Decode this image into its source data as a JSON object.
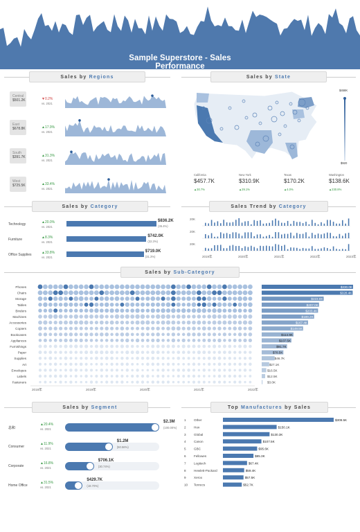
{
  "header": {
    "title": "Sample Superstore - Sales Performance"
  },
  "regions": {
    "title_prefix": "Sales  by",
    "title_word": "Regions",
    "items": [
      {
        "name": "Central",
        "value": "$501.2K",
        "delta": "▼0.2%",
        "vs": "vs. 2021",
        "dir": "down"
      },
      {
        "name": "East",
        "value": "$678.8K",
        "delta": "▲17.9%",
        "vs": "vs. 2021",
        "dir": "up"
      },
      {
        "name": "South",
        "value": "$391.7K",
        "delta": "▲31.3%",
        "vs": "vs. 2021",
        "dir": "up"
      },
      {
        "name": "West",
        "value": "$725.5K",
        "delta": "▲33.4%",
        "vs": "vs. 2021",
        "dir": "up"
      }
    ]
  },
  "state": {
    "title_prefix": "Sales  by",
    "title_word": "State",
    "legend_max": "$458K",
    "legend_min": "$920",
    "items": [
      {
        "name": "California",
        "value": "$457.7K",
        "delta": "▲30.7%"
      },
      {
        "name": "New York",
        "value": "$310.9K",
        "delta": "▲29.1%"
      },
      {
        "name": "Texas",
        "value": "$170.2K",
        "delta": "▲4.0%"
      },
      {
        "name": "Washington",
        "value": "$138.6K",
        "delta": "▲230.8%"
      }
    ]
  },
  "category": {
    "title_prefix": "Sales  by",
    "title_word": "Category",
    "items": [
      {
        "name": "Technology",
        "delta": "▲20.0%",
        "vs": "vs. 2021",
        "value": "$836.2K",
        "share": "(36.4%)",
        "pct": 36.4
      },
      {
        "name": "Furniture",
        "delta": "▲8.3%",
        "vs": "vs. 2021",
        "value": "$742.0K",
        "share": "(32.3%)",
        "pct": 32.3
      },
      {
        "name": "Office Supplies",
        "delta": "▲33.8%",
        "vs": "vs. 2021",
        "value": "$719.0K",
        "share": "(31.3%)",
        "pct": 31.3
      }
    ]
  },
  "trend": {
    "title_prefix": "Sales Trend  by",
    "title_word": "Category",
    "ylabel": "20K",
    "years": [
      "2019年",
      "2020年",
      "2021年",
      "2022年",
      "2023年"
    ]
  },
  "subcat": {
    "title_prefix": "Sales  by",
    "title_word": "Sub-Category",
    "years": [
      "2018年",
      "2019年",
      "2020年",
      "2021年",
      "2022年"
    ],
    "items": [
      {
        "name": "Phones",
        "value": "$330.0K",
        "v": 330.0
      },
      {
        "name": "Chairs",
        "value": "$328.4K",
        "v": 328.4
      },
      {
        "name": "Storage",
        "value": "$223.8K",
        "v": 223.8
      },
      {
        "name": "Tables",
        "value": "$207.0K",
        "v": 207.0
      },
      {
        "name": "Binders",
        "value": "$203.4K",
        "v": 203.4
      },
      {
        "name": "Machines",
        "value": "$189.2K",
        "v": 189.2
      },
      {
        "name": "Accessories",
        "value": "$167.4K",
        "v": 167.4
      },
      {
        "name": "Copiers",
        "value": "$149.5K",
        "v": 149.5
      },
      {
        "name": "Bookcases",
        "value": "$114.9K",
        "v": 114.9
      },
      {
        "name": "Appliances",
        "value": "$107.5K",
        "v": 107.5
      },
      {
        "name": "Furnishings",
        "value": "$91.7K",
        "v": 91.7
      },
      {
        "name": "Paper",
        "value": "$78.5K",
        "v": 78.5
      },
      {
        "name": "Supplies",
        "value": "$46.7K",
        "v": 46.7
      },
      {
        "name": "Art",
        "value": "$27.1K",
        "v": 27.1
      },
      {
        "name": "Envelopes",
        "value": "$16.5K",
        "v": 16.5
      },
      {
        "name": "Labels",
        "value": "$12.5K",
        "v": 12.5
      },
      {
        "name": "Fasteners",
        "value": "$3.0K",
        "v": 3.0
      }
    ]
  },
  "segment": {
    "title_prefix": "Sales  by",
    "title_word": "Segment",
    "items": [
      {
        "name": "总和",
        "delta": "▲20.4%",
        "vs": "vs. 2021",
        "value": "$2.3M",
        "share": "(100.00%)",
        "pct": 100
      },
      {
        "name": "Consumer",
        "delta": "▲11.9%",
        "vs": "vs. 2021",
        "value": "$1.2M",
        "share": "(50.56%)",
        "pct": 50.56
      },
      {
        "name": "Corporate",
        "delta": "▲16.8%",
        "vs": "vs. 2021",
        "value": "$706.1K",
        "share": "(30.74%)",
        "pct": 30.74
      },
      {
        "name": "Home Office",
        "delta": "▲31.5%",
        "vs": "vs. 2021",
        "value": "$429.7K",
        "share": "(18.70%)",
        "pct": 18.7
      }
    ]
  },
  "manufacturers": {
    "title_prefix": "Top",
    "title_word": "Manufactures",
    "title_suffix": "by  Sales",
    "items": [
      {
        "rank": "1",
        "name": "Other",
        "value": "$309.5K",
        "v": 309.5
      },
      {
        "rank": "2",
        "name": "Hon",
        "value": "$150.1K",
        "v": 150.1
      },
      {
        "rank": "3",
        "name": "Global",
        "value": "$130.3K",
        "v": 130.3
      },
      {
        "rank": "4",
        "name": "Canon",
        "value": "$107.5K",
        "v": 107.5
      },
      {
        "rank": "5",
        "name": "GBC",
        "value": "$95.6K",
        "v": 95.6
      },
      {
        "rank": "6",
        "name": "Fellowes",
        "value": "$85.3K",
        "v": 85.3
      },
      {
        "rank": "7",
        "name": "Logitech",
        "value": "$67.4K",
        "v": 67.4
      },
      {
        "rank": "8",
        "name": "Hewlett-Packard",
        "value": "$59.4K",
        "v": 59.4
      },
      {
        "rank": "9",
        "name": "Xerox",
        "value": "$57.5K",
        "v": 57.5
      },
      {
        "rank": "10",
        "name": "Tenrecs",
        "value": "$52.7K",
        "v": 52.7
      }
    ]
  },
  "colors": {
    "accent": "#4b79b0",
    "light": "#a9c1df",
    "pale": "#e3ebf4",
    "up": "#3a9a46",
    "down": "#d04040"
  }
}
